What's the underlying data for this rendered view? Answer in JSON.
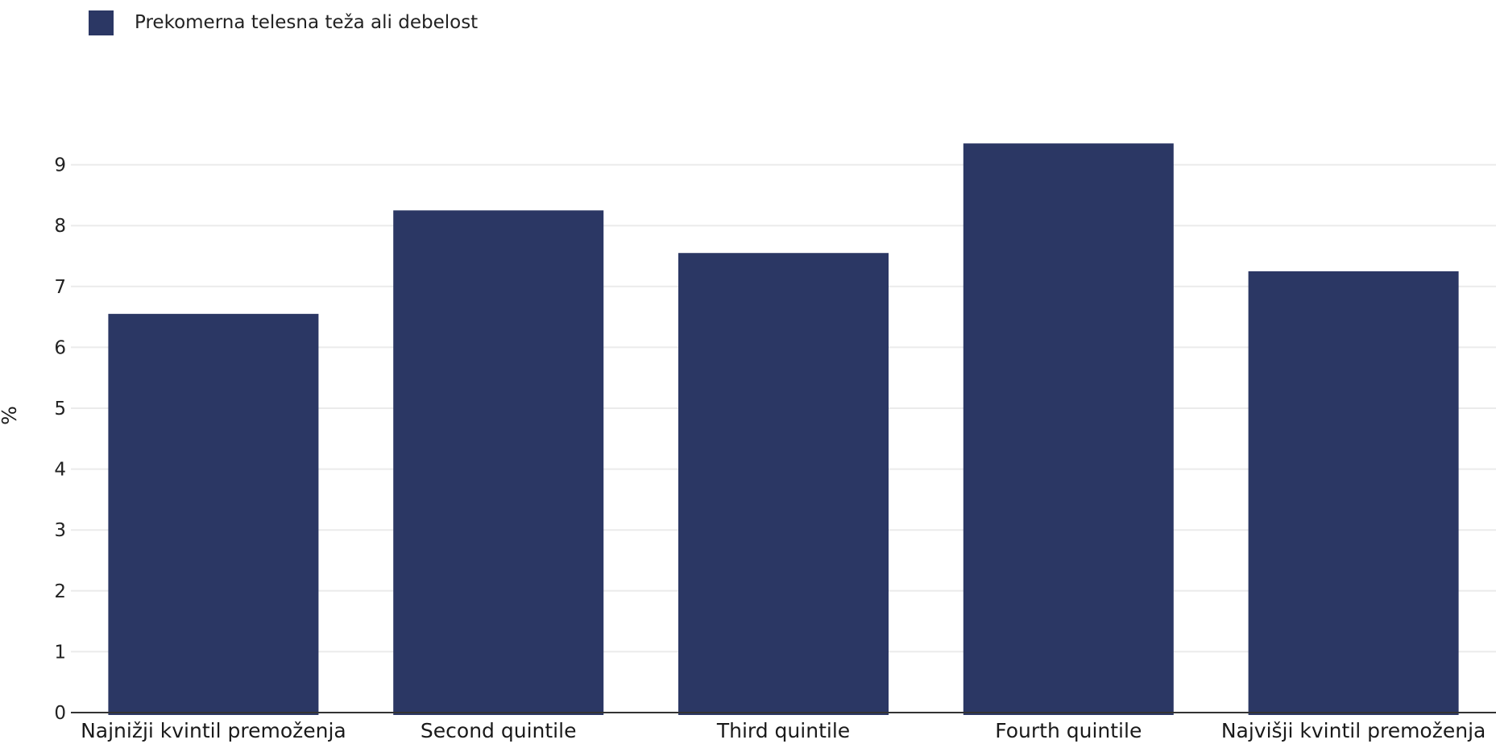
{
  "legend": {
    "label": "Prekomerna telesna teža ali debelost",
    "color": "#2b3764"
  },
  "chart_data": {
    "type": "bar",
    "categories": [
      "Najnižji kvintil premoženja",
      "Second quintile",
      "Third quintile",
      "Fourth quintile",
      "Najvišji kvintil premoženja"
    ],
    "series": [
      {
        "name": "Prekomerna telesna teža ali debelost",
        "values": [
          6.55,
          8.25,
          7.55,
          9.35,
          7.25
        ],
        "color": "#2b3764"
      }
    ],
    "ylabel": "%",
    "ylim": [
      0,
      9.35
    ],
    "yticks": [
      "0",
      "1",
      "2",
      "3",
      "4",
      "5",
      "6",
      "7",
      "8",
      "9"
    ],
    "grid": true,
    "legend_position": "top-left"
  }
}
